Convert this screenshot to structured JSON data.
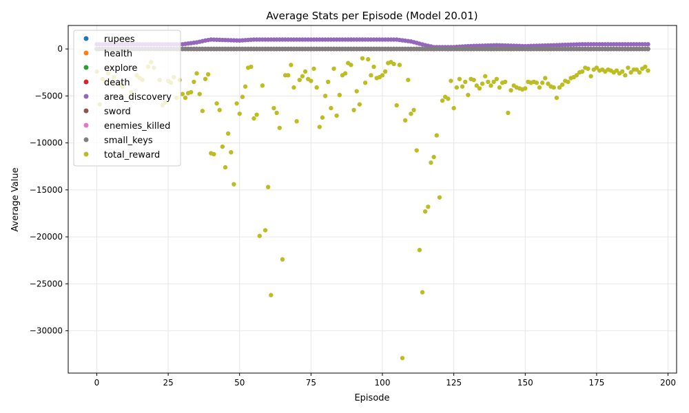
{
  "chart_data": {
    "type": "scatter",
    "title": "Average Stats per Episode (Model 20.01)",
    "xlabel": "Episode",
    "ylabel": "Average Value",
    "xlim": [
      -10,
      203
    ],
    "ylim": [
      -34500,
      2500
    ],
    "xticks": [
      0,
      25,
      50,
      75,
      100,
      125,
      150,
      175,
      200
    ],
    "yticks": [
      0,
      -5000,
      -10000,
      -15000,
      -20000,
      -25000,
      -30000
    ],
    "grid": true,
    "legend_position": "top-left",
    "series": [
      {
        "name": "rupees",
        "color": "#1f77b4",
        "type": "constant",
        "x_range": [
          0,
          193
        ],
        "value": 0
      },
      {
        "name": "health",
        "color": "#ff7f0e",
        "type": "constant",
        "x_range": [
          0,
          193
        ],
        "value": 0
      },
      {
        "name": "explore",
        "color": "#2ca02c",
        "type": "constant",
        "x_range": [
          0,
          193
        ],
        "value": 0
      },
      {
        "name": "death",
        "color": "#d62728",
        "type": "constant",
        "x_range": [
          0,
          193
        ],
        "value": 0
      },
      {
        "name": "area_discovery",
        "color": "#9467bd",
        "type": "segments",
        "x": [
          0,
          10,
          20,
          30,
          35,
          38,
          40,
          50,
          55,
          60,
          70,
          80,
          90,
          100,
          105,
          110,
          115,
          118,
          120,
          125,
          130,
          140,
          150,
          160,
          170,
          193
        ],
        "y": [
          500,
          500,
          500,
          500,
          700,
          900,
          1000,
          900,
          1000,
          1000,
          1000,
          1000,
          1000,
          1000,
          1000,
          800,
          400,
          200,
          200,
          200,
          300,
          400,
          300,
          400,
          500,
          500
        ]
      },
      {
        "name": "sword",
        "color": "#8c564b",
        "type": "constant",
        "x_range": [
          0,
          193
        ],
        "value": 0
      },
      {
        "name": "enemies_killed",
        "color": "#e377c2",
        "type": "constant",
        "x_range": [
          0,
          193
        ],
        "value": 0
      },
      {
        "name": "small_keys",
        "color": "#7f7f7f",
        "type": "constant",
        "x_range": [
          0,
          193
        ],
        "value": 0
      },
      {
        "name": "total_reward",
        "color": "#bcbd22",
        "type": "points",
        "points": [
          [
            0,
            -2400
          ],
          [
            1,
            -5900
          ],
          [
            2,
            -3200
          ],
          [
            3,
            -3500
          ],
          [
            4,
            -2600
          ],
          [
            6,
            -3000
          ],
          [
            8,
            -3800
          ],
          [
            9,
            -4000
          ],
          [
            12,
            -4600
          ],
          [
            14,
            -2800
          ],
          [
            15,
            -3100
          ],
          [
            16,
            -3300
          ],
          [
            18,
            -1900
          ],
          [
            19,
            -1400
          ],
          [
            20,
            -2000
          ],
          [
            22,
            -3300
          ],
          [
            23,
            -6000
          ],
          [
            24,
            -5700
          ],
          [
            25,
            -3400
          ],
          [
            26,
            -3600
          ],
          [
            27,
            -3000
          ],
          [
            28,
            -5200
          ],
          [
            29,
            -3300
          ],
          [
            30,
            -4800
          ],
          [
            31,
            -5200
          ],
          [
            32,
            -4700
          ],
          [
            33,
            -4600
          ],
          [
            34,
            -3500
          ],
          [
            35,
            -2600
          ],
          [
            36,
            -4800
          ],
          [
            37,
            -6600
          ],
          [
            38,
            -3200
          ],
          [
            39,
            -2700
          ],
          [
            40,
            -11100
          ],
          [
            41,
            -11200
          ],
          [
            42,
            -5800
          ],
          [
            43,
            -6500
          ],
          [
            44,
            -10400
          ],
          [
            45,
            -12600
          ],
          [
            46,
            -9000
          ],
          [
            47,
            -11000
          ],
          [
            48,
            -14400
          ],
          [
            49,
            -5800
          ],
          [
            50,
            -6900
          ],
          [
            51,
            -5100
          ],
          [
            52,
            -4000
          ],
          [
            53,
            -2000
          ],
          [
            54,
            -1900
          ],
          [
            55,
            -7400
          ],
          [
            56,
            -7000
          ],
          [
            57,
            -19900
          ],
          [
            58,
            -3900
          ],
          [
            59,
            -19300
          ],
          [
            60,
            -14700
          ],
          [
            61,
            -26200
          ],
          [
            62,
            -6300
          ],
          [
            63,
            -6800
          ],
          [
            64,
            -8400
          ],
          [
            65,
            -22400
          ],
          [
            66,
            -2800
          ],
          [
            67,
            -2800
          ],
          [
            68,
            -1700
          ],
          [
            69,
            -4100
          ],
          [
            70,
            -7700
          ],
          [
            71,
            -3300
          ],
          [
            72,
            -2900
          ],
          [
            73,
            -2400
          ],
          [
            74,
            -3200
          ],
          [
            75,
            -3400
          ],
          [
            76,
            -2100
          ],
          [
            77,
            -4100
          ],
          [
            78,
            -8300
          ],
          [
            79,
            -7300
          ],
          [
            80,
            -5000
          ],
          [
            81,
            -3500
          ],
          [
            82,
            -6300
          ],
          [
            83,
            -2100
          ],
          [
            84,
            -7100
          ],
          [
            85,
            -4900
          ],
          [
            86,
            -2800
          ],
          [
            87,
            -2600
          ],
          [
            88,
            -1500
          ],
          [
            89,
            -1700
          ],
          [
            90,
            -6500
          ],
          [
            91,
            -4500
          ],
          [
            92,
            -5900
          ],
          [
            93,
            -1000
          ],
          [
            94,
            -3600
          ],
          [
            95,
            -1100
          ],
          [
            96,
            -2800
          ],
          [
            97,
            -1900
          ],
          [
            98,
            -3100
          ],
          [
            99,
            -3000
          ],
          [
            100,
            -2800
          ],
          [
            101,
            -2400
          ],
          [
            102,
            -1500
          ],
          [
            103,
            -1400
          ],
          [
            104,
            -1600
          ],
          [
            105,
            -6000
          ],
          [
            106,
            -1700
          ],
          [
            107,
            -32900
          ],
          [
            108,
            -7600
          ],
          [
            109,
            -3300
          ],
          [
            110,
            -6900
          ],
          [
            111,
            -6500
          ],
          [
            112,
            -10800
          ],
          [
            113,
            -21400
          ],
          [
            114,
            -25900
          ],
          [
            115,
            -17300
          ],
          [
            116,
            -16800
          ],
          [
            117,
            -12100
          ],
          [
            118,
            -11500
          ],
          [
            119,
            -9200
          ],
          [
            120,
            -15800
          ],
          [
            121,
            -5500
          ],
          [
            122,
            -5100
          ],
          [
            123,
            -5300
          ],
          [
            124,
            -3400
          ],
          [
            125,
            -6300
          ],
          [
            126,
            -4100
          ],
          [
            127,
            -3200
          ],
          [
            128,
            -4000
          ],
          [
            129,
            -3500
          ],
          [
            130,
            -4900
          ],
          [
            131,
            -3200
          ],
          [
            132,
            -3300
          ],
          [
            133,
            -3900
          ],
          [
            134,
            -4200
          ],
          [
            135,
            -3700
          ],
          [
            136,
            -2900
          ],
          [
            137,
            -3500
          ],
          [
            138,
            -3900
          ],
          [
            139,
            -3500
          ],
          [
            140,
            -3200
          ],
          [
            141,
            -4100
          ],
          [
            142,
            -3600
          ],
          [
            143,
            -3500
          ],
          [
            144,
            -6800
          ],
          [
            145,
            -4400
          ],
          [
            146,
            -3900
          ],
          [
            147,
            -4100
          ],
          [
            148,
            -4200
          ],
          [
            149,
            -4300
          ],
          [
            150,
            -4200
          ],
          [
            151,
            -3500
          ],
          [
            152,
            -3600
          ],
          [
            153,
            -3500
          ],
          [
            154,
            -3600
          ],
          [
            155,
            -4100
          ],
          [
            156,
            -3600
          ],
          [
            157,
            -3100
          ],
          [
            158,
            -3700
          ],
          [
            159,
            -4000
          ],
          [
            160,
            -4100
          ],
          [
            161,
            -5200
          ],
          [
            162,
            -4100
          ],
          [
            163,
            -3800
          ],
          [
            164,
            -3400
          ],
          [
            165,
            -3500
          ],
          [
            166,
            -3100
          ],
          [
            167,
            -3000
          ],
          [
            168,
            -2800
          ],
          [
            169,
            -2500
          ],
          [
            170,
            -2400
          ],
          [
            171,
            -2000
          ],
          [
            172,
            -2100
          ],
          [
            173,
            -2900
          ],
          [
            174,
            -2200
          ],
          [
            175,
            -2000
          ],
          [
            176,
            -2300
          ],
          [
            177,
            -2200
          ],
          [
            178,
            -2400
          ],
          [
            179,
            -2200
          ],
          [
            180,
            -2300
          ],
          [
            181,
            -2500
          ],
          [
            182,
            -2300
          ],
          [
            183,
            -2600
          ],
          [
            184,
            -2400
          ],
          [
            185,
            -2800
          ],
          [
            186,
            -2000
          ],
          [
            187,
            -2500
          ],
          [
            188,
            -2200
          ],
          [
            189,
            -2200
          ],
          [
            190,
            -2500
          ],
          [
            191,
            -2100
          ],
          [
            192,
            -1900
          ],
          [
            193,
            -2300
          ]
        ]
      }
    ]
  }
}
